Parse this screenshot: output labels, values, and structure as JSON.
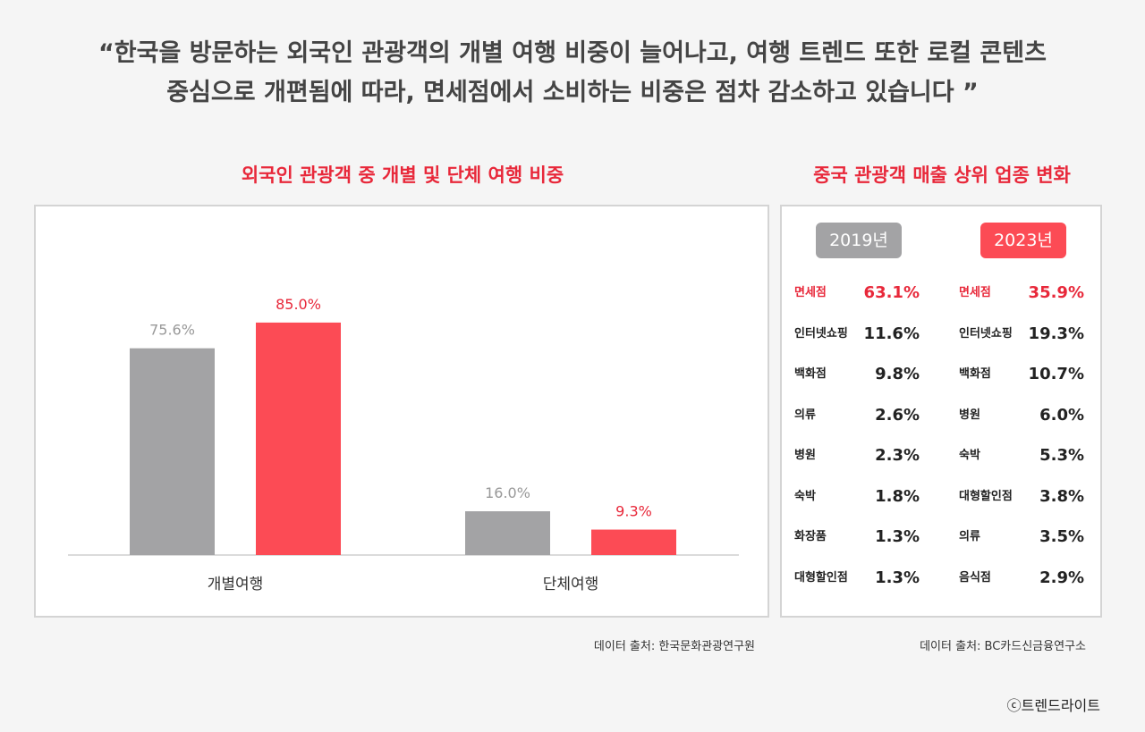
{
  "quote": {
    "line1": "“한국을 방문하는 외국인 관광객의 개별 여행 비중이 늘어나고, 여행 트렌드 또한 로컬 콘텐츠",
    "line2": "중심으로 개편됨에 따라, 면세점에서 소비하는 비중은 점차 감소하고 있습니다 ”"
  },
  "left": {
    "title": "외국인 관광객 중 개별 및 단체 여행 비중",
    "source": "데이터 출처: 한국문화관광연구원"
  },
  "right": {
    "title": "중국 관광객 매출 상위 업종 변화",
    "source": "데이터 출처: BC카드신금융연구소",
    "years": [
      {
        "label": "2019년",
        "color": "#a3a3a5",
        "rows": [
          {
            "name": "면세점",
            "value": "63.1%",
            "highlight": true
          },
          {
            "name": "인터넷쇼핑",
            "value": "11.6%"
          },
          {
            "name": "백화점",
            "value": "9.8%"
          },
          {
            "name": "의류",
            "value": "2.6%"
          },
          {
            "name": "병원",
            "value": "2.3%"
          },
          {
            "name": "숙박",
            "value": "1.8%"
          },
          {
            "name": "화장품",
            "value": "1.3%"
          },
          {
            "name": "대형할인점",
            "value": "1.3%"
          }
        ]
      },
      {
        "label": "2023년",
        "color": "#fc4b55",
        "rows": [
          {
            "name": "면세점",
            "value": "35.9%",
            "highlight": true
          },
          {
            "name": "인터넷쇼핑",
            "value": "19.3%"
          },
          {
            "name": "백화점",
            "value": "10.7%"
          },
          {
            "name": "병원",
            "value": "6.0%"
          },
          {
            "name": "숙박",
            "value": "5.3%"
          },
          {
            "name": "대형할인점",
            "value": "3.8%"
          },
          {
            "name": "의류",
            "value": "3.5%"
          },
          {
            "name": "음식점",
            "value": "2.9%"
          }
        ]
      }
    ]
  },
  "credit": "ⓒ트렌드라이트",
  "chart_data": {
    "type": "bar",
    "title": "외국인 관광객 중 개별 및 단체 여행 비중",
    "categories": [
      "개별여행",
      "단체여행"
    ],
    "series": [
      {
        "color": "#a3a3a5",
        "values": [
          75.6,
          16.0
        ],
        "labels": [
          "75.6%",
          "16.0%"
        ]
      },
      {
        "color": "#fc4b55",
        "values": [
          85.0,
          9.3
        ],
        "labels": [
          "85.0%",
          "9.3%"
        ]
      }
    ],
    "label_colors": [
      "#999999",
      "#e8283a"
    ],
    "ylim": [
      0,
      100
    ],
    "grid": false,
    "legend": "none"
  }
}
